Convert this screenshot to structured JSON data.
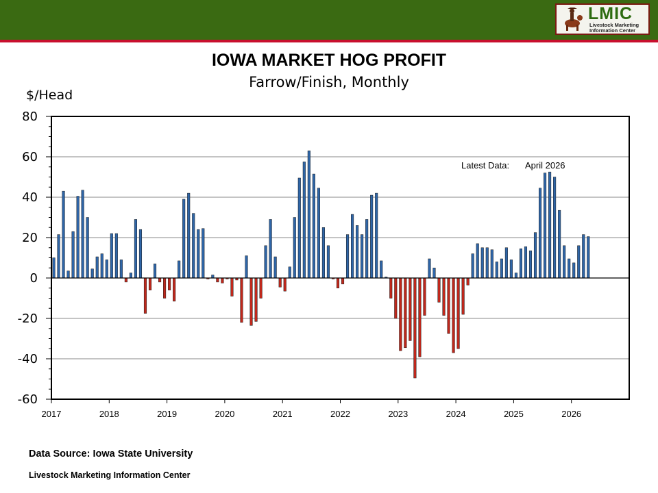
{
  "header": {
    "logo_text": "LMIC",
    "logo_subtext": "Livestock Marketing Information Center",
    "colors": {
      "band": "#3a6a12",
      "stripe": "#c8102e"
    }
  },
  "footer": {
    "source": "Data Source:  Iowa State University",
    "organization": "Livestock Marketing Information Center"
  },
  "chart_data": {
    "type": "bar",
    "title": "IOWA MARKET HOG PROFIT",
    "subtitle": "Farrow/Finish, Monthly",
    "ylabel": "$/Head",
    "xlabel": "",
    "ylim": [
      -60,
      80
    ],
    "yticks": [
      80,
      60,
      40,
      20,
      0,
      -20,
      -40,
      -60
    ],
    "x_tick_labels": [
      "2017",
      "2018",
      "2019",
      "2020",
      "2021",
      "2022",
      "2023",
      "2024",
      "2025",
      "2026"
    ],
    "x_start": "2017-01",
    "x_range_years": [
      2017,
      2027
    ],
    "grid": true,
    "annotation": {
      "label": "Latest Data:",
      "value": "April 2026"
    },
    "colors": {
      "positive": "#2f66a8",
      "negative": "#c0281c"
    },
    "values": [
      10,
      21.5,
      43,
      3.5,
      23,
      40.5,
      43.5,
      30,
      4.5,
      10.5,
      12,
      9,
      22,
      22,
      9,
      -2,
      2.5,
      29,
      24,
      -17.5,
      -6,
      7,
      -2,
      -10,
      -6,
      -11.5,
      8.5,
      39,
      42,
      32,
      24,
      24.5,
      -0.5,
      1.5,
      -2,
      -2.5,
      -0.5,
      -9,
      -1,
      -22,
      11,
      -23.5,
      -21.5,
      -10,
      16,
      29,
      10.5,
      -4.5,
      -6.5,
      5.5,
      30,
      49.5,
      57.5,
      63,
      51.5,
      44.5,
      25,
      16,
      -0.5,
      -5,
      -3,
      21.5,
      31.5,
      26,
      21.5,
      29,
      41,
      42,
      8.5,
      0.5,
      -10,
      -20,
      -36,
      -34.5,
      -31,
      -49.5,
      -39,
      -18.5,
      9.5,
      5,
      -12,
      -18.5,
      -27.5,
      -37,
      -35,
      -18,
      -3.5,
      12,
      17,
      15,
      15,
      14,
      8,
      9.5,
      15,
      9,
      2.5,
      14.5,
      15.5,
      13.5,
      22.5,
      44.5,
      52,
      52.5,
      50,
      33.5,
      16,
      9.5,
      7.5,
      16,
      21.5,
      20.5
    ]
  }
}
